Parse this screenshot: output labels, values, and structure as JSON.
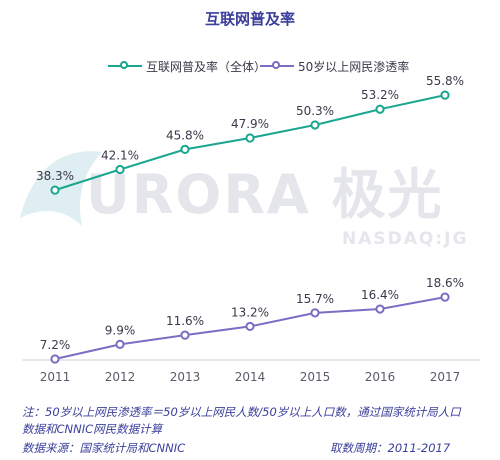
{
  "colors": {
    "series1": "#1aa68f",
    "series2": "#7b6cc4",
    "title": "#3b3f9a",
    "axis": "#cfcfd8",
    "watermark": "#e4e6ec"
  },
  "watermark": {
    "text": "URORA 极光",
    "subtext": "NASDAQ:JG"
  },
  "chart_data": {
    "type": "line",
    "title": "互联网普及率",
    "categories": [
      "2011",
      "2012",
      "2013",
      "2014",
      "2015",
      "2016",
      "2017"
    ],
    "series": [
      {
        "name": "互联网普及率（全体）",
        "values": [
          38.3,
          42.1,
          45.8,
          47.9,
          50.3,
          53.2,
          55.8
        ],
        "labels": [
          "38.3%",
          "42.1%",
          "45.8%",
          "47.9%",
          "50.3%",
          "53.2%",
          "55.8%"
        ]
      },
      {
        "name": "50岁以上网民渗透率",
        "values": [
          7.2,
          9.9,
          11.6,
          13.2,
          15.7,
          16.4,
          18.6
        ],
        "labels": [
          "7.2%",
          "9.9%",
          "11.6%",
          "13.2%",
          "15.7%",
          "16.4%",
          "18.6%"
        ]
      }
    ],
    "legend_position": "top",
    "grid": false
  },
  "footer": {
    "note_line1": "注：50岁以上网民渗透率＝50岁以上网民人数/50岁以上人口数，通过国家统计局人口",
    "note_line2": "数据和CNNIC网民数据计算",
    "source": "数据来源：国家统计局和CNNIC",
    "period": "取数周期：2011-2017"
  }
}
